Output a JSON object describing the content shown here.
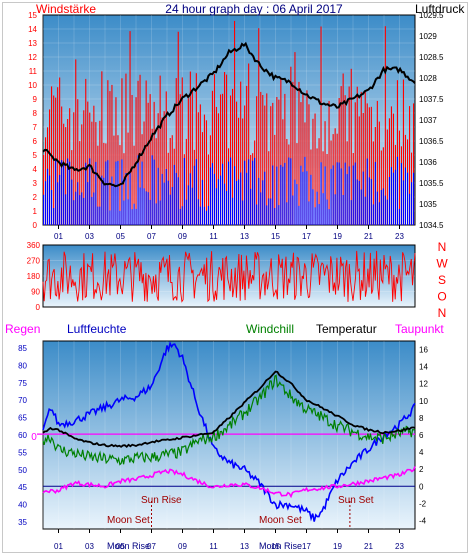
{
  "colors": {
    "wind_bar": "#ff0000",
    "gust_bar": "#0000ff",
    "pressure_line": "#000000",
    "direction_line": "#ff0000",
    "temperature_line": "#000000",
    "windchill_line": "#008000",
    "dewpoint_line": "#ff00ff",
    "humidity_line": "#0000ff",
    "sun_text": "#a00000",
    "moon_text": "#a00000",
    "axis_left_top": "#ff0000",
    "axis_left_bottom": "#0000c0",
    "panel_top": "#3c8cc8",
    "panel_bottom": "#eaf4fc"
  },
  "chart_data": [
    {
      "type": "bar",
      "title": "24 hour graph day : 06 April 2017",
      "left_label": "Windstärke",
      "right_label": "Luftdruck",
      "x_ticks": [
        "01",
        "03",
        "05",
        "07",
        "09",
        "11",
        "13",
        "15",
        "17",
        "19",
        "21",
        "23"
      ],
      "y_left_ticks": [
        "0",
        "1",
        "2",
        "3",
        "4",
        "5",
        "6",
        "7",
        "8",
        "9",
        "10",
        "11",
        "12",
        "13",
        "14",
        "15"
      ],
      "y_left_range": [
        0,
        15
      ],
      "y_right_ticks": [
        "1034.5",
        "1035",
        "1035.5",
        "1036",
        "1036.5",
        "1037",
        "1037.5",
        "1028",
        "1028.5",
        "1029",
        "1029.5"
      ],
      "y_right_range": [
        1034.5,
        1039.5
      ],
      "series": [
        {
          "name": "Luftdruck",
          "kind": "line",
          "x": [
            0,
            1,
            2,
            3,
            4,
            5,
            6,
            7,
            8,
            9,
            10,
            11,
            12,
            13,
            14,
            15,
            16,
            17,
            18,
            19,
            20,
            21,
            22,
            23,
            24
          ],
          "values": [
            1036.3,
            1036.0,
            1035.8,
            1035.9,
            1035.5,
            1035.4,
            1036.0,
            1036.6,
            1037.1,
            1037.5,
            1037.8,
            1038.1,
            1038.6,
            1038.8,
            1038.3,
            1038.0,
            1037.9,
            1037.6,
            1037.4,
            1037.3,
            1037.5,
            1037.7,
            1038.2,
            1038.2,
            1037.9
          ]
        }
      ]
    },
    {
      "type": "line",
      "right_label": "NWSON",
      "y_ticks": [
        "0",
        "90",
        "180",
        "270",
        "360"
      ],
      "y_range": [
        0,
        360
      ],
      "series": []
    },
    {
      "type": "line",
      "legend": [
        "Regen",
        "Luftfeuchte",
        "Windchill",
        "Temperatur",
        "Taupunkt"
      ],
      "x_ticks": [
        "01",
        "03",
        "05",
        "07",
        "09",
        "11",
        "13",
        "15",
        "17",
        "19",
        "21",
        "23"
      ],
      "y_left_ticks": [
        "35",
        "40",
        "45",
        "50",
        "55",
        "60",
        "65",
        "70",
        "75",
        "80",
        "85"
      ],
      "y_left_range": [
        33,
        87
      ],
      "y_right_ticks": [
        "-4",
        "-2",
        "0",
        "2",
        "4",
        "6",
        "8",
        "10",
        "12",
        "14",
        "16"
      ],
      "y_right_range": [
        -5,
        17
      ],
      "regen_zero_label": "0",
      "series": [
        {
          "name": "Temperatur",
          "x": [
            0,
            0.5,
            1,
            2,
            3,
            4,
            5,
            6,
            7,
            8,
            9,
            10,
            11,
            12,
            13,
            14,
            15,
            16,
            17,
            18,
            19,
            20,
            21,
            22,
            23,
            24
          ],
          "values": [
            6.2,
            6.8,
            6.6,
            5.6,
            5.1,
            4.8,
            4.7,
            4.8,
            5.2,
            5.4,
            5.7,
            6.0,
            6.3,
            8.0,
            9.8,
            11.5,
            13.5,
            12.0,
            10.1,
            9.2,
            8.2,
            7.2,
            6.6,
            6.3,
            6.5,
            6.9
          ]
        },
        {
          "name": "Windchill",
          "x": [
            0,
            0.5,
            1,
            2,
            3,
            4,
            5,
            6,
            7,
            8,
            9,
            10,
            11,
            12,
            13,
            14,
            15,
            16,
            17,
            18,
            19,
            20,
            21,
            22,
            23,
            24
          ],
          "values": [
            5.5,
            5.8,
            4.3,
            3.9,
            3.4,
            3.2,
            3.0,
            3.3,
            3.4,
            3.7,
            4.0,
            5.3,
            5.8,
            7.0,
            8.6,
            10.3,
            12.5,
            10.5,
            9.0,
            8.1,
            7.1,
            6.4,
            5.8,
            5.6,
            6.2,
            6.5
          ]
        },
        {
          "name": "Taupunkt",
          "x": [
            0,
            1,
            2,
            3,
            4,
            5,
            6,
            7,
            8,
            9,
            10,
            11,
            12,
            13,
            14,
            15,
            16,
            17,
            18,
            19,
            20,
            21,
            22,
            23,
            24
          ],
          "values": [
            -0.6,
            -0.5,
            0.4,
            0.2,
            0.0,
            0.6,
            0.8,
            1.3,
            1.8,
            1.4,
            0.6,
            -0.1,
            0.2,
            0.2,
            -0.2,
            -0.8,
            -1.0,
            -0.4,
            -0.2,
            0.0,
            0.3,
            0.6,
            1.0,
            1.3,
            2.1
          ]
        },
        {
          "name": "Luftfeuchte",
          "x": [
            0,
            0.5,
            1,
            2,
            3,
            4,
            5,
            6,
            7,
            8,
            8.5,
            9,
            10,
            11,
            12,
            13,
            14,
            15,
            16,
            17,
            17.5,
            18,
            19,
            20,
            21,
            22,
            23,
            24
          ],
          "values": [
            61,
            68,
            63,
            64,
            66,
            68,
            70,
            71,
            74,
            85,
            86,
            82,
            68,
            56,
            52,
            50,
            46,
            40,
            40,
            38,
            36,
            38,
            47,
            52,
            56,
            60,
            63,
            68
          ]
        },
        {
          "name": "Regen",
          "x": [
            0,
            24
          ],
          "values": [
            0,
            0
          ]
        }
      ],
      "annotations": [
        "Sun Rise",
        "Sun Set",
        "Moon Set",
        "Moon Set",
        "Moon Rise",
        "Moon Rise"
      ]
    }
  ]
}
